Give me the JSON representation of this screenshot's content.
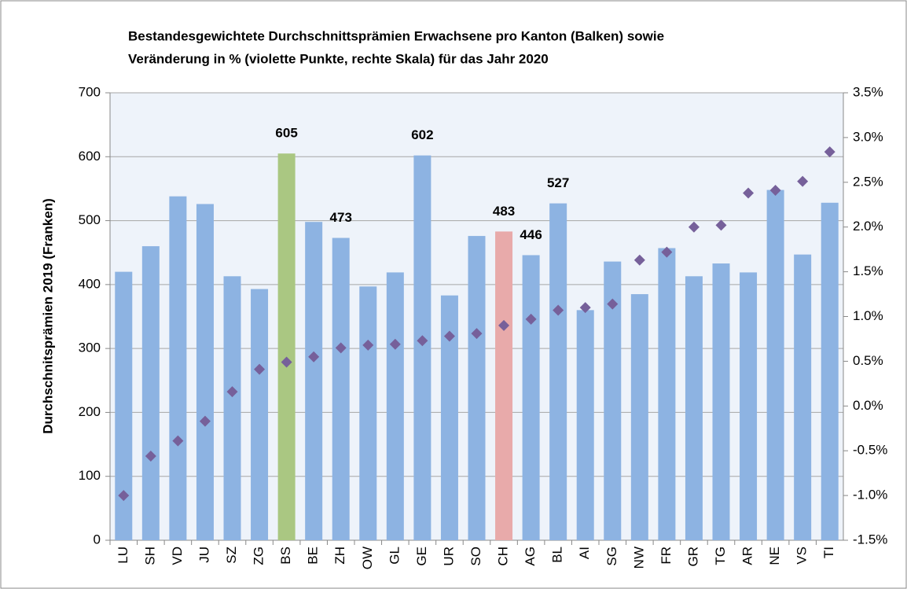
{
  "chart_data": {
    "type": "bar",
    "title": [
      "Bestandesgewichtete Durchschnittsprämien  Erwachsene pro Kanton (Balken) sowie",
      "Veränderung in % (violette Punkte, rechte Skala) für das Jahr 2020"
    ],
    "y_label": "Durchschnitsprämien  2019 (Franken)",
    "categories": [
      "LU",
      "SH",
      "VD",
      "JU",
      "SZ",
      "ZG",
      "BS",
      "BE",
      "ZH",
      "OW",
      "GL",
      "GE",
      "UR",
      "SO",
      "CH",
      "AG",
      "BL",
      "AI",
      "SG",
      "NW",
      "FR",
      "GR",
      "TG",
      "AR",
      "NE",
      "VS",
      "TI"
    ],
    "series": [
      {
        "type": "bar",
        "colors": [
          "#8db3e2",
          "#8db3e2",
          "#8db3e2",
          "#8db3e2",
          "#8db3e2",
          "#8db3e2",
          "#aac782",
          "#8db3e2",
          "#8db3e2",
          "#8db3e2",
          "#8db3e2",
          "#8db3e2",
          "#8db3e2",
          "#8db3e2",
          "#e8aaaa",
          "#8db3e2",
          "#8db3e2",
          "#8db3e2",
          "#8db3e2",
          "#8db3e2",
          "#8db3e2",
          "#8db3e2",
          "#8db3e2",
          "#8db3e2",
          "#8db3e2",
          "#8db3e2",
          "#8db3e2"
        ],
        "values": [
          420,
          460,
          538,
          526,
          413,
          393,
          605,
          498,
          473,
          397,
          419,
          602,
          383,
          476,
          483,
          446,
          527,
          360,
          436,
          385,
          457,
          413,
          433,
          419,
          548,
          447,
          528
        ],
        "value_labels": [
          null,
          null,
          null,
          null,
          null,
          null,
          "605",
          null,
          "473",
          null,
          null,
          "602",
          null,
          null,
          "483",
          "446",
          "527",
          null,
          null,
          null,
          null,
          null,
          null,
          null,
          null,
          null,
          null
        ]
      },
      {
        "type": "scatter",
        "axis": "y2",
        "color": "#76609a",
        "values": [
          -1.0,
          -0.56,
          -0.39,
          -0.17,
          0.16,
          0.41,
          0.49,
          0.55,
          0.65,
          0.68,
          0.69,
          0.73,
          0.78,
          0.81,
          0.9,
          0.97,
          1.07,
          1.1,
          1.14,
          1.63,
          1.72,
          2.0,
          2.02,
          2.38,
          2.41,
          2.51,
          2.84
        ]
      }
    ],
    "ylim": [
      0,
      700
    ],
    "yticks": [
      0,
      100,
      200,
      300,
      400,
      500,
      600,
      700
    ],
    "y2lim": [
      -1.5,
      3.5
    ],
    "y2ticks": [
      {
        "value": -1.5,
        "label": "-1.5%"
      },
      {
        "value": -1.0,
        "label": "-1.0%"
      },
      {
        "value": -0.5,
        "label": "-0.5%"
      },
      {
        "value": 0,
        "label": "0.0%"
      },
      {
        "value": 0.5,
        "label": "0.5%"
      },
      {
        "value": 1.0,
        "label": "1.0%"
      },
      {
        "value": 1.5,
        "label": "1.5%"
      },
      {
        "value": 2.0,
        "label": "2.0%"
      },
      {
        "value": 2.5,
        "label": "2.5%"
      },
      {
        "value": 3.0,
        "label": "3.0%"
      },
      {
        "value": 3.5,
        "label": "3.5%"
      }
    ],
    "grid": true
  }
}
